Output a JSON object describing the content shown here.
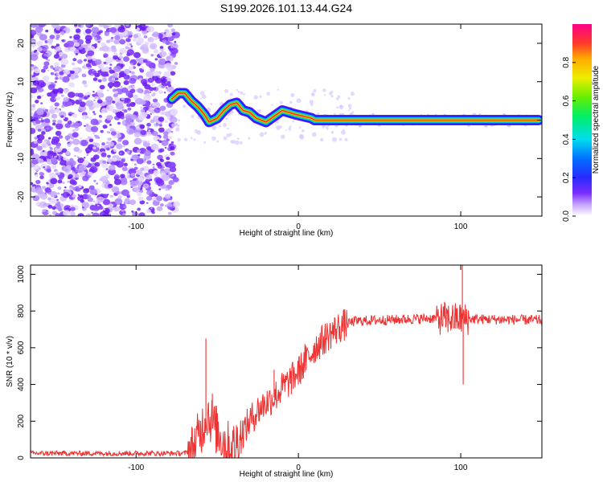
{
  "figure": {
    "title": "S199.2026.101.13.44.G24"
  },
  "chart_data": [
    {
      "type": "heatmap",
      "title": "S199.2026.101.13.44.G24",
      "xlabel": "Height of straight line (km)",
      "ylabel": "Frequency (Hz)",
      "xlim": [
        -165,
        150
      ],
      "ylim": [
        -25,
        25
      ],
      "xticks": [
        -100,
        0,
        100
      ],
      "yticks": [
        -20,
        -10,
        0,
        10,
        20
      ],
      "colorbar": {
        "label": "Normalized spectral amplitude",
        "range": [
          0,
          1
        ],
        "ticks": [
          0.0,
          0.2,
          0.4,
          0.6,
          0.8
        ]
      },
      "signal_track": [
        {
          "x": -78,
          "y": 5.5
        },
        {
          "x": -74,
          "y": 7.0
        },
        {
          "x": -70,
          "y": 7.0
        },
        {
          "x": -66,
          "y": 5.0
        },
        {
          "x": -62,
          "y": 3.5
        },
        {
          "x": -58,
          "y": 1.5
        },
        {
          "x": -55,
          "y": -0.5
        },
        {
          "x": -50,
          "y": 0.5
        },
        {
          "x": -46,
          "y": 2.5
        },
        {
          "x": -42,
          "y": 4.0
        },
        {
          "x": -38,
          "y": 4.5
        },
        {
          "x": -34,
          "y": 2.5
        },
        {
          "x": -30,
          "y": 2.0
        },
        {
          "x": -26,
          "y": 0.5
        },
        {
          "x": -20,
          "y": -0.5
        },
        {
          "x": -15,
          "y": 1.0
        },
        {
          "x": -10,
          "y": 2.5
        },
        {
          "x": -6,
          "y": 2.0
        },
        {
          "x": -2,
          "y": 1.5
        },
        {
          "x": 3,
          "y": 1.0
        },
        {
          "x": 8,
          "y": 0.5
        },
        {
          "x": 10,
          "y": 0.0
        },
        {
          "x": 148,
          "y": 0.0
        }
      ]
    },
    {
      "type": "line",
      "xlabel": "Height of straight line (km)",
      "ylabel": "SNR (10 * v/v)",
      "xlim": [
        -165,
        150
      ],
      "ylim": [
        0,
        1050
      ],
      "xticks": [
        -100,
        0,
        100
      ],
      "yticks": [
        0,
        200,
        400,
        600,
        800,
        1000
      ],
      "series": [
        {
          "name": "SNR",
          "color": "#ee3333",
          "profile": [
            {
              "x": -165,
              "y": 25
            },
            {
              "x": -70,
              "y": 25
            },
            {
              "x": -65,
              "y": 50
            },
            {
              "x": -60,
              "y": 150
            },
            {
              "x": -56,
              "y": 250
            },
            {
              "x": -52,
              "y": 170
            },
            {
              "x": -48,
              "y": 120
            },
            {
              "x": -44,
              "y": 70
            },
            {
              "x": -40,
              "y": 60
            },
            {
              "x": -35,
              "y": 130
            },
            {
              "x": -30,
              "y": 200
            },
            {
              "x": -25,
              "y": 260
            },
            {
              "x": -20,
              "y": 300
            },
            {
              "x": -15,
              "y": 330
            },
            {
              "x": -10,
              "y": 380
            },
            {
              "x": -5,
              "y": 420
            },
            {
              "x": 0,
              "y": 470
            },
            {
              "x": 5,
              "y": 530
            },
            {
              "x": 10,
              "y": 600
            },
            {
              "x": 15,
              "y": 640
            },
            {
              "x": 20,
              "y": 680
            },
            {
              "x": 25,
              "y": 710
            },
            {
              "x": 30,
              "y": 730
            },
            {
              "x": 35,
              "y": 745
            },
            {
              "x": 50,
              "y": 750
            },
            {
              "x": 80,
              "y": 760
            },
            {
              "x": 150,
              "y": 750
            }
          ],
          "spikes": [
            {
              "x": -57,
              "y": 650
            },
            {
              "x": -53,
              "y": 350
            },
            {
              "x": -15,
              "y": 480
            },
            {
              "x": 4,
              "y": 620
            },
            {
              "x": 90,
              "y": 850
            },
            {
              "x": 101,
              "y": 1050
            },
            {
              "x": 101.5,
              "y": 400
            }
          ]
        }
      ]
    }
  ]
}
